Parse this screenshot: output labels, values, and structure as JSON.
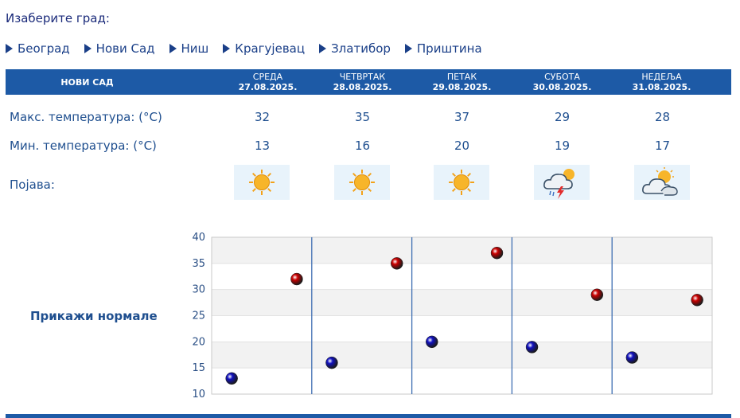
{
  "page": {
    "choose_city_label": "Изаберите град:"
  },
  "cities": [
    {
      "name": "Београд"
    },
    {
      "name": "Нови Сад"
    },
    {
      "name": "Ниш"
    },
    {
      "name": "Крагујевац"
    },
    {
      "name": "Златибор"
    },
    {
      "name": "Приштина"
    }
  ],
  "forecast": {
    "city_name": "НОВИ САД",
    "days": [
      {
        "name": "СРЕДА",
        "date": "27.08.2025.",
        "max": "32",
        "min": "13",
        "icon": "sun-icon"
      },
      {
        "name": "ЧЕТВРТАК",
        "date": "28.08.2025.",
        "max": "35",
        "min": "16",
        "icon": "sun-icon"
      },
      {
        "name": "ПЕТАК",
        "date": "29.08.2025.",
        "max": "37",
        "min": "20",
        "icon": "sun-icon"
      },
      {
        "name": "СУБОТА",
        "date": "30.08.2025.",
        "max": "29",
        "min": "19",
        "icon": "thunderstorm-icon"
      },
      {
        "name": "НЕДЕЉА",
        "date": "31.08.2025.",
        "max": "28",
        "min": "17",
        "icon": "partly-cloudy-icon"
      }
    ],
    "labels": {
      "max": "Макс. температура: (°C)",
      "min": "Мин. температура: (°C)",
      "phenomenon": "Појава:"
    }
  },
  "show_normals_label": "Прикажи нормале",
  "colors": {
    "header_bg": "#1d5aa6",
    "max_marker": "#cc0000",
    "min_marker": "#1010c0",
    "text": "#1f4f8f"
  },
  "chart_data": {
    "type": "scatter",
    "categories": [
      "27.08.2025.",
      "28.08.2025.",
      "29.08.2025.",
      "30.08.2025.",
      "31.08.2025."
    ],
    "series": [
      {
        "values": [
          32,
          35,
          37,
          29,
          28
        ],
        "color": "#cc0000"
      },
      {
        "values": [
          13,
          16,
          20,
          19,
          17
        ],
        "color": "#1010c0"
      }
    ],
    "ylim": [
      10,
      40
    ],
    "yticks": [
      "10",
      "15",
      "20",
      "25",
      "30",
      "35",
      "40"
    ],
    "grid": true
  }
}
